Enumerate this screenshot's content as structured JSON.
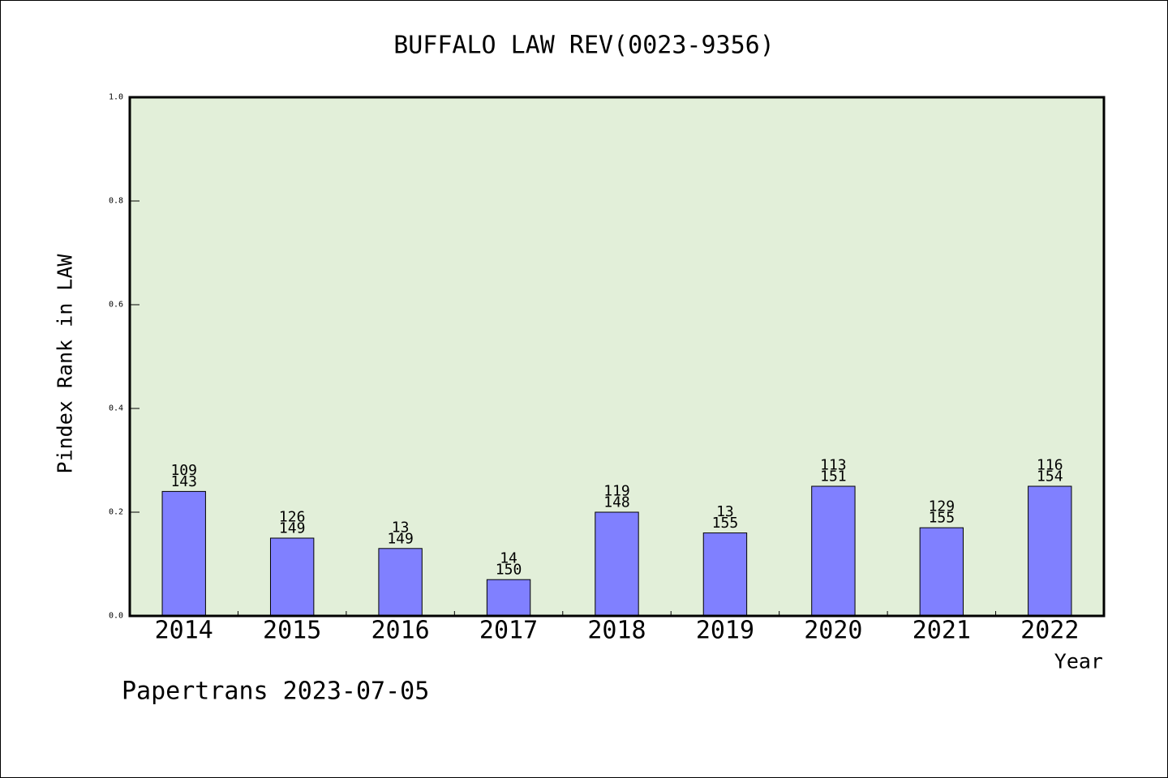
{
  "chart_data": {
    "type": "bar",
    "title": "BUFFALO LAW REV(0023-9356)",
    "xlabel": "Year",
    "ylabel": "Pindex Rank in LAW",
    "categories": [
      "2014",
      "2015",
      "2016",
      "2017",
      "2018",
      "2019",
      "2020",
      "2021",
      "2022"
    ],
    "values": [
      0.24,
      0.15,
      0.13,
      0.07,
      0.2,
      0.16,
      0.25,
      0.17,
      0.25
    ],
    "data_labels": [
      [
        "109",
        "143"
      ],
      [
        "126",
        "149"
      ],
      [
        "13",
        "149"
      ],
      [
        "14",
        "150"
      ],
      [
        "119",
        "148"
      ],
      [
        "13",
        "155"
      ],
      [
        "113",
        "151"
      ],
      [
        "129",
        "155"
      ],
      [
        "116",
        "154"
      ]
    ],
    "ylim": [
      0,
      1.0
    ],
    "ytick_labels": [
      "0.0",
      "0.2",
      "0.4",
      "0.6",
      "0.8",
      "1.0"
    ],
    "grid": false,
    "colors": {
      "bar": "#8080FF",
      "bar_edge": "#000000",
      "plot_background": "#E2EFD9"
    }
  },
  "footer": {
    "text": "Papertrans 2023-07-05"
  }
}
